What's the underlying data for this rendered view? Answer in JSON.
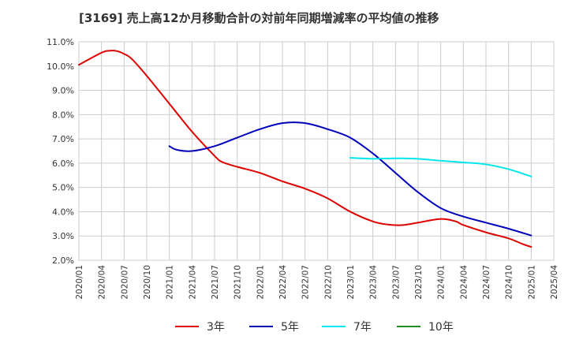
{
  "chart_data": {
    "type": "line",
    "title": "[3169]  売上高12か月移動合計の対前年同期増減率の平均値の推移",
    "xlabel": "",
    "ylabel": "",
    "ylim": [
      2.0,
      11.0
    ],
    "yticks": [
      "11.0%",
      "10.0%",
      "9.0%",
      "8.0%",
      "7.0%",
      "6.0%",
      "5.0%",
      "4.0%",
      "3.0%",
      "2.0%"
    ],
    "xticks": [
      "2020/01",
      "2020/04",
      "2020/07",
      "2020/10",
      "2021/01",
      "2021/04",
      "2021/07",
      "2021/10",
      "2022/01",
      "2022/04",
      "2022/07",
      "2022/10",
      "2023/01",
      "2023/04",
      "2023/07",
      "2023/10",
      "2024/01",
      "2024/04",
      "2024/07",
      "2024/10",
      "2025/01",
      "2025/04"
    ],
    "grid": true,
    "legend_position": "bottom",
    "series": [
      {
        "name": "3年",
        "color": "#dd0000",
        "points": [
          [
            "2020/01",
            10.05
          ],
          [
            "2020/04",
            10.55
          ],
          [
            "2020/05",
            10.63
          ],
          [
            "2020/06",
            10.62
          ],
          [
            "2020/07",
            10.5
          ],
          [
            "2020/08",
            10.3
          ],
          [
            "2020/10",
            9.6
          ],
          [
            "2021/01",
            8.45
          ],
          [
            "2021/04",
            7.3
          ],
          [
            "2021/07",
            6.3
          ],
          [
            "2021/08",
            6.05
          ],
          [
            "2021/10",
            5.85
          ],
          [
            "2022/01",
            5.6
          ],
          [
            "2022/04",
            5.25
          ],
          [
            "2022/07",
            4.95
          ],
          [
            "2022/10",
            4.55
          ],
          [
            "2023/01",
            4.0
          ],
          [
            "2023/04",
            3.6
          ],
          [
            "2023/06",
            3.47
          ],
          [
            "2023/08",
            3.45
          ],
          [
            "2023/10",
            3.55
          ],
          [
            "2024/01",
            3.7
          ],
          [
            "2024/03",
            3.6
          ],
          [
            "2024/04",
            3.45
          ],
          [
            "2024/07",
            3.15
          ],
          [
            "2024/10",
            2.9
          ],
          [
            "2024/12",
            2.65
          ],
          [
            "2025/01",
            2.55
          ]
        ]
      },
      {
        "name": "5年",
        "color": "#0000bb",
        "points": [
          [
            "2021/01",
            6.7
          ],
          [
            "2021/02",
            6.55
          ],
          [
            "2021/04",
            6.5
          ],
          [
            "2021/07",
            6.7
          ],
          [
            "2021/10",
            7.05
          ],
          [
            "2022/01",
            7.4
          ],
          [
            "2022/04",
            7.65
          ],
          [
            "2022/07",
            7.65
          ],
          [
            "2022/10",
            7.4
          ],
          [
            "2023/01",
            7.05
          ],
          [
            "2023/04",
            6.4
          ],
          [
            "2023/07",
            5.6
          ],
          [
            "2023/10",
            4.8
          ],
          [
            "2024/01",
            4.15
          ],
          [
            "2024/04",
            3.8
          ],
          [
            "2024/07",
            3.55
          ],
          [
            "2024/10",
            3.3
          ],
          [
            "2025/01",
            3.02
          ]
        ]
      },
      {
        "name": "7年",
        "color": "#00e5ee",
        "points": [
          [
            "2023/01",
            6.22
          ],
          [
            "2023/04",
            6.18
          ],
          [
            "2023/07",
            6.2
          ],
          [
            "2023/10",
            6.18
          ],
          [
            "2024/01",
            6.1
          ],
          [
            "2024/04",
            6.03
          ],
          [
            "2024/07",
            5.95
          ],
          [
            "2024/10",
            5.75
          ],
          [
            "2025/01",
            5.45
          ]
        ]
      },
      {
        "name": "10年",
        "color": "#228b22",
        "points": []
      }
    ]
  }
}
